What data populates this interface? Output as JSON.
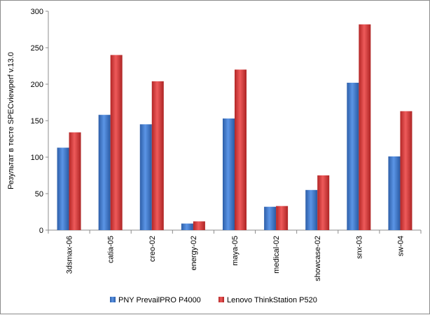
{
  "chart_data": {
    "type": "bar",
    "title": "",
    "xlabel": "",
    "ylabel": "Результат в тесте SPECviewperf v.13.0",
    "ylim": [
      0,
      300
    ],
    "yticks": [
      0,
      50,
      100,
      150,
      200,
      250,
      300
    ],
    "categories": [
      "3dsmax-06",
      "catia-05",
      "creo-02",
      "energy-02",
      "maya-05",
      "medical-02",
      "showcase-02",
      "snx-03",
      "sw-04"
    ],
    "series": [
      {
        "name": "PNY PrevailPRO P4000",
        "color": "#3c74c9",
        "values": [
          113,
          158,
          145,
          9,
          153,
          32,
          55,
          202,
          101
        ]
      },
      {
        "name": "Lenovo ThinkStation P520",
        "color": "#d63a3a",
        "values": [
          134,
          240,
          204,
          12,
          220,
          33,
          75,
          282,
          163
        ]
      }
    ],
    "grid": false,
    "legend": "bottom"
  }
}
